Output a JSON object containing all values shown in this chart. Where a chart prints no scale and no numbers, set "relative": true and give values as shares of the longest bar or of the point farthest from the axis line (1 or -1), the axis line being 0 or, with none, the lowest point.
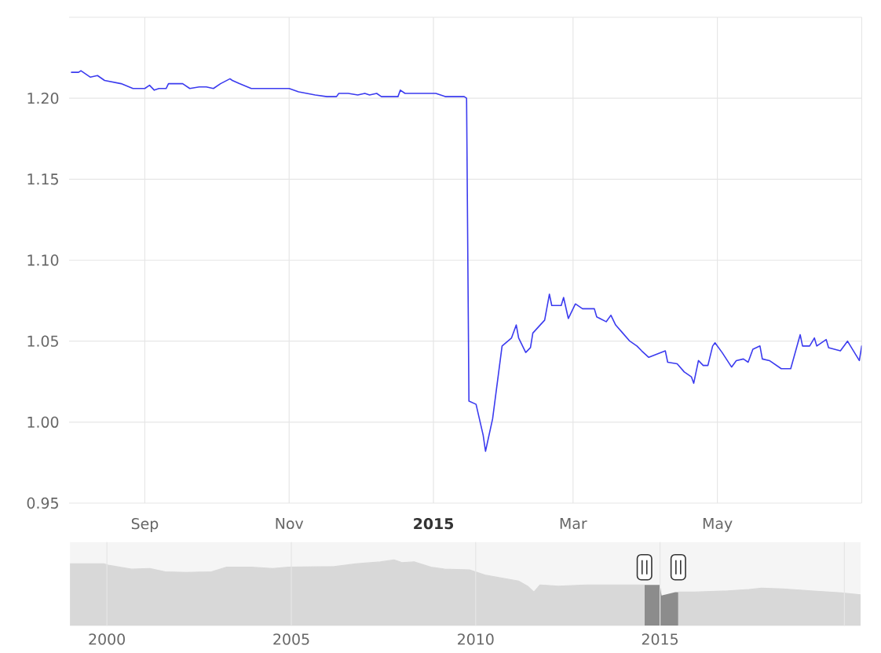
{
  "chart_data": [
    {
      "type": "line",
      "color": "#3b3bef",
      "marker": "none",
      "line_style": "solid",
      "grid": true,
      "xlim": [
        "2014-07-31",
        "2015-07-01"
      ],
      "ylim": [
        0.95,
        1.25
      ],
      "xticks": [
        {
          "value": "2014-09-01",
          "label": "Sep"
        },
        {
          "value": "2014-11-01",
          "label": "Nov"
        },
        {
          "value": "2015-01-01",
          "label": "2015"
        },
        {
          "value": "2015-03-01",
          "label": "Mar"
        },
        {
          "value": "2015-05-01",
          "label": "May"
        },
        {
          "value": "2015-07-01",
          "label": null
        }
      ],
      "yticks": [
        0.95,
        {
          "value": 1,
          "label": "1.00"
        },
        1.05,
        {
          "value": 1.1,
          "label": "1.10"
        },
        1.15,
        {
          "value": 1.2,
          "label": "1.20"
        },
        {
          "value": 1.25,
          "label": null
        }
      ],
      "x": [
        "2014-08-01",
        "2014-08-04",
        "2014-08-05",
        "2014-08-09",
        "2014-08-12",
        "2014-08-15",
        "2014-08-22",
        "2014-08-27",
        "2014-09-01",
        "2014-09-03",
        "2014-09-05",
        "2014-09-07",
        "2014-09-10",
        "2014-09-11",
        "2014-09-14",
        "2014-09-17",
        "2014-09-20",
        "2014-09-24",
        "2014-09-27",
        "2014-09-30",
        "2014-10-03",
        "2014-10-07",
        "2014-10-08",
        "2014-10-11",
        "2014-10-16",
        "2014-10-21",
        "2014-10-25",
        "2014-11-01",
        "2014-11-05",
        "2014-11-12",
        "2014-11-17",
        "2014-11-21",
        "2014-11-22",
        "2014-11-26",
        "2014-11-30",
        "2014-12-03",
        "2014-12-05",
        "2014-12-08",
        "2014-12-10",
        "2014-12-17",
        "2014-12-18",
        "2014-12-20",
        "2014-12-26",
        "2015-01-02",
        "2015-01-06",
        "2015-01-14",
        "2015-01-15",
        "2015-01-16",
        "2015-01-19",
        "2015-01-22",
        "2015-01-23",
        "2015-01-26",
        "2015-01-30",
        "2015-02-03",
        "2015-02-05",
        "2015-02-06",
        "2015-02-09",
        "2015-02-11",
        "2015-02-12",
        "2015-02-17",
        "2015-02-19",
        "2015-02-20",
        "2015-02-24",
        "2015-02-25",
        "2015-02-27",
        "2015-03-02",
        "2015-03-05",
        "2015-03-10",
        "2015-03-11",
        "2015-03-15",
        "2015-03-17",
        "2015-03-19",
        "2015-03-22",
        "2015-03-25",
        "2015-03-28",
        "2015-03-30",
        "2015-04-02",
        "2015-04-09",
        "2015-04-10",
        "2015-04-14",
        "2015-04-17",
        "2015-04-20",
        "2015-04-21",
        "2015-04-23",
        "2015-04-25",
        "2015-04-27",
        "2015-04-29",
        "2015-04-30",
        "2015-05-03",
        "2015-05-07",
        "2015-05-09",
        "2015-05-12",
        "2015-05-14",
        "2015-05-16",
        "2015-05-19",
        "2015-05-20",
        "2015-05-23",
        "2015-05-28",
        "2015-06-01",
        "2015-06-05",
        "2015-06-06",
        "2015-06-09",
        "2015-06-11",
        "2015-06-12",
        "2015-06-16",
        "2015-06-17",
        "2015-06-22",
        "2015-06-25",
        "2015-06-30",
        "2015-07-01"
      ],
      "values": [
        1.216,
        1.216,
        1.217,
        1.213,
        1.214,
        1.211,
        1.209,
        1.206,
        1.206,
        1.208,
        1.205,
        1.206,
        1.206,
        1.209,
        1.209,
        1.209,
        1.206,
        1.207,
        1.207,
        1.206,
        1.209,
        1.212,
        1.211,
        1.209,
        1.206,
        1.206,
        1.206,
        1.206,
        1.204,
        1.202,
        1.201,
        1.201,
        1.203,
        1.203,
        1.202,
        1.203,
        1.202,
        1.203,
        1.201,
        1.201,
        1.205,
        1.203,
        1.203,
        1.203,
        1.201,
        1.201,
        1.2,
        1.013,
        1.011,
        0.992,
        0.982,
        1.002,
        1.047,
        1.052,
        1.06,
        1.052,
        1.043,
        1.046,
        1.055,
        1.063,
        1.079,
        1.072,
        1.072,
        1.077,
        1.064,
        1.073,
        1.07,
        1.07,
        1.065,
        1.062,
        1.066,
        1.06,
        1.055,
        1.05,
        1.047,
        1.044,
        1.04,
        1.044,
        1.037,
        1.036,
        1.031,
        1.028,
        1.024,
        1.038,
        1.035,
        1.035,
        1.047,
        1.049,
        1.043,
        1.034,
        1.038,
        1.039,
        1.037,
        1.045,
        1.047,
        1.039,
        1.038,
        1.033,
        1.033,
        1.054,
        1.047,
        1.047,
        1.052,
        1.047,
        1.051,
        1.046,
        1.044,
        1.05,
        1.038,
        1.047
      ]
    },
    {
      "type": "area",
      "color": "#d8d8d8",
      "relative": true,
      "grid": "x",
      "tick_labels": "x",
      "xlim": [
        "1999-01-01",
        "2020-06-10"
      ],
      "xticks": [
        {
          "value": "2000",
          "label": "2000"
        },
        {
          "value": "2005",
          "label": "2005"
        },
        {
          "value": "2010",
          "label": "2010"
        },
        {
          "value": "2015",
          "label": "2015"
        },
        {
          "value": "2020",
          "label": null
        }
      ],
      "bands": [
        {
          "axis": "x",
          "from": "2014-07-31",
          "to": "2015-07-01",
          "color": "#8c8c8c"
        }
      ],
      "x": [
        "1999-01-01",
        "1999-12-01",
        "2000-01-15",
        "2000-09-01",
        "2001-03-01",
        "2001-08-01",
        "2002-03-01",
        "2002-11-01",
        "2003-04-01",
        "2003-12-01",
        "2004-07-01",
        "2004-12-01",
        "2006-03-01",
        "2006-10-01",
        "2007-06-01",
        "2007-10-15",
        "2008-01-01",
        "2008-05-01",
        "2008-10-15",
        "2009-03-01",
        "2009-11-01",
        "2010-04-01",
        "2010-10-01",
        "2011-03-01",
        "2011-06-01",
        "2011-08-01",
        "2011-10-01",
        "2012-04-01",
        "2013-01-01",
        "2014-06-01",
        "2015-01-01",
        "2015-01-16",
        "2015-06-01",
        "2015-12-01",
        "2016-11-01",
        "2017-06-01",
        "2017-10-01",
        "2018-05-01",
        "2019-02-01",
        "2019-12-01",
        "2020-06-10"
      ],
      "values": [
        0.94,
        0.94,
        0.92,
        0.86,
        0.87,
        0.82,
        0.81,
        0.82,
        0.89,
        0.89,
        0.87,
        0.89,
        0.9,
        0.94,
        0.97,
        1,
        0.96,
        0.97,
        0.89,
        0.86,
        0.85,
        0.77,
        0.72,
        0.68,
        0.6,
        0.51,
        0.62,
        0.6,
        0.62,
        0.62,
        0.62,
        0.46,
        0.51,
        0.51,
        0.53,
        0.55,
        0.57,
        0.56,
        0.53,
        0.5,
        0.47
      ]
    }
  ]
}
